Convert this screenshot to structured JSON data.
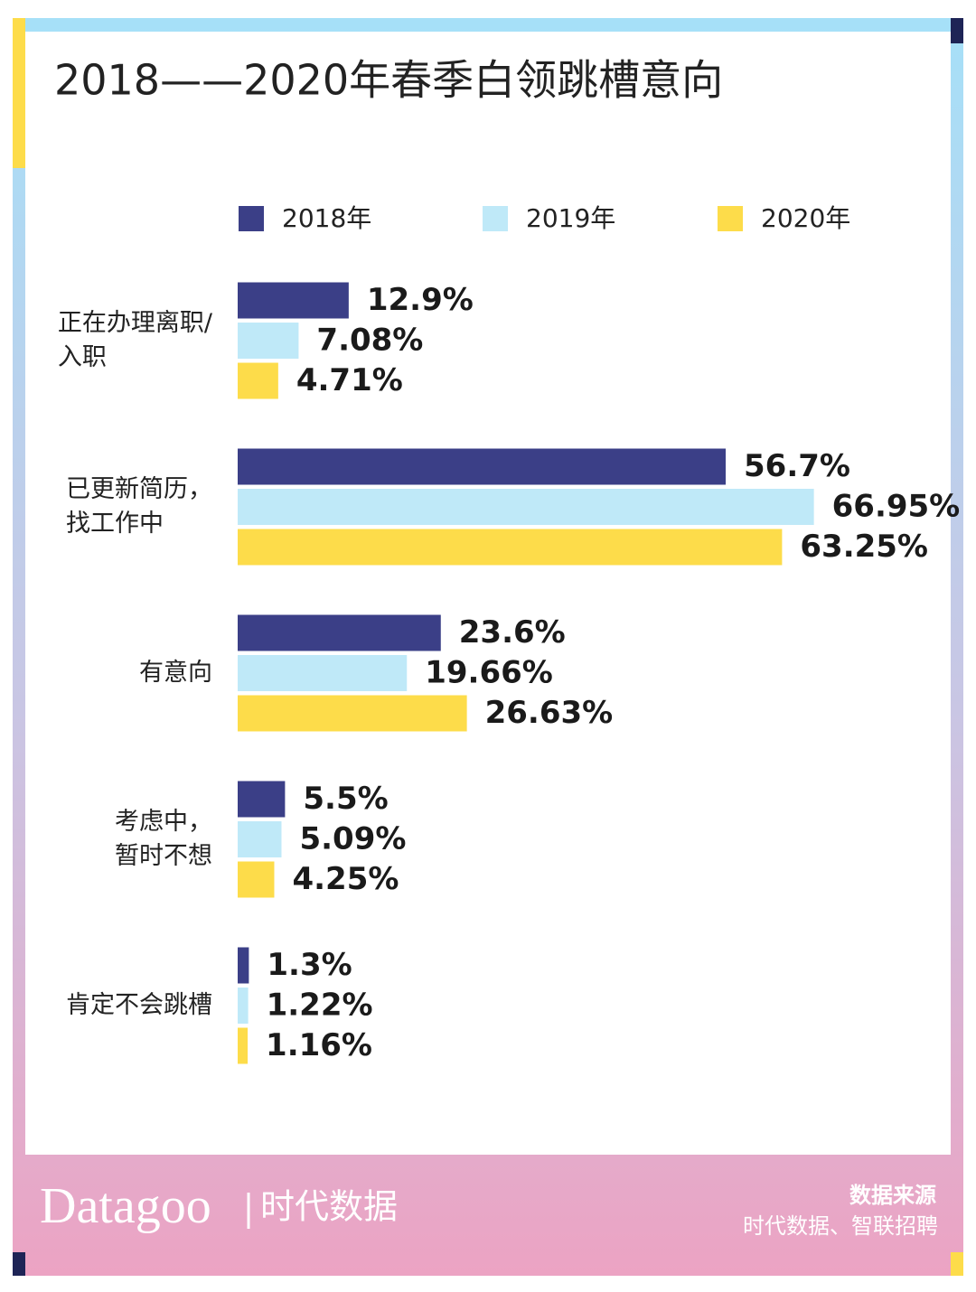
{
  "chart_data": {
    "type": "bar",
    "orientation": "horizontal",
    "title": "2018——2020年春季白领跳槽意向",
    "categories": [
      "正在办理离职/\n入职",
      "已更新简历，\n找工作中",
      "有意向",
      "考虑中，\n暂时不想",
      "肯定不会跳槽"
    ],
    "series": [
      {
        "name": "2018年",
        "color": "#3b3f87",
        "values": [
          12.9,
          56.7,
          23.6,
          5.5,
          1.3
        ],
        "value_labels": [
          "12.9%",
          "56.7%",
          "23.6%",
          "5.5%",
          "1.3%"
        ]
      },
      {
        "name": "2019年",
        "color": "#bfe9f8",
        "values": [
          7.08,
          66.95,
          19.66,
          5.09,
          1.22
        ],
        "value_labels": [
          "7.08%",
          "66.95%",
          "19.66%",
          "5.09%",
          "1.22%"
        ]
      },
      {
        "name": "2020年",
        "color": "#fddc4a",
        "values": [
          4.71,
          63.25,
          26.63,
          4.25,
          1.16
        ],
        "value_labels": [
          "4.71%",
          "63.25%",
          "26.63%",
          "4.25%",
          "1.16%"
        ]
      }
    ],
    "legend": "top"
  },
  "footer": {
    "brand": "Datagoo",
    "brand_cn": "时代数据",
    "source_title": "数据来源",
    "source": "时代数据、智联招聘"
  }
}
